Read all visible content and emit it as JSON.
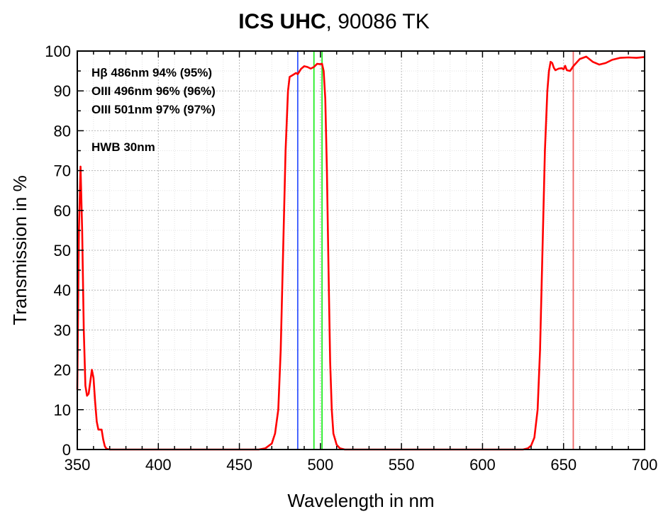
{
  "chart_data": {
    "type": "line",
    "title": "ICS UHC",
    "subtitle": ", 90086 TK",
    "xlabel": "Wavelength in nm",
    "ylabel": "Transmission in %",
    "xlim": [
      350,
      700
    ],
    "ylim": [
      0,
      100
    ],
    "x_ticks": [
      350,
      400,
      450,
      500,
      550,
      600,
      650,
      700
    ],
    "y_ticks": [
      0,
      10,
      20,
      30,
      40,
      50,
      60,
      70,
      80,
      90,
      100
    ],
    "grid": true,
    "series": [
      {
        "color": "#ff0000",
        "points": [
          [
            350,
            15
          ],
          [
            351,
            55
          ],
          [
            352,
            71
          ],
          [
            353,
            55
          ],
          [
            354,
            30
          ],
          [
            355,
            16
          ],
          [
            356,
            13.5
          ],
          [
            357,
            14
          ],
          [
            358,
            17
          ],
          [
            359,
            20
          ],
          [
            360,
            18
          ],
          [
            361,
            12
          ],
          [
            362,
            7
          ],
          [
            363,
            5
          ],
          [
            364,
            5
          ],
          [
            365,
            5
          ],
          [
            366,
            2.5
          ],
          [
            367,
            0.8
          ],
          [
            368,
            0.2
          ],
          [
            370,
            0
          ],
          [
            400,
            0
          ],
          [
            450,
            0
          ],
          [
            462,
            0
          ],
          [
            466,
            0.3
          ],
          [
            470,
            1.5
          ],
          [
            472,
            4
          ],
          [
            474,
            10
          ],
          [
            475.5,
            25
          ],
          [
            477,
            50
          ],
          [
            478.5,
            75
          ],
          [
            480,
            90
          ],
          [
            481,
            93.5
          ],
          [
            483,
            94
          ],
          [
            485,
            94.5
          ],
          [
            486,
            94.2
          ],
          [
            488,
            95.5
          ],
          [
            490,
            96.2
          ],
          [
            492,
            96
          ],
          [
            494,
            95.6
          ],
          [
            496,
            96
          ],
          [
            498,
            96.8
          ],
          [
            500,
            96.7
          ],
          [
            501,
            96.8
          ],
          [
            502,
            95
          ],
          [
            503,
            88
          ],
          [
            504,
            70
          ],
          [
            505,
            45
          ],
          [
            506,
            22
          ],
          [
            507,
            10
          ],
          [
            508,
            4
          ],
          [
            510,
            1.2
          ],
          [
            512,
            0.3
          ],
          [
            515,
            0
          ],
          [
            560,
            0
          ],
          [
            600,
            0
          ],
          [
            625,
            0
          ],
          [
            628,
            0.3
          ],
          [
            630,
            1
          ],
          [
            632,
            3
          ],
          [
            634,
            10
          ],
          [
            635.5,
            25
          ],
          [
            637,
            50
          ],
          [
            638.5,
            75
          ],
          [
            640,
            90
          ],
          [
            641,
            95
          ],
          [
            642,
            97.3
          ],
          [
            643,
            97
          ],
          [
            644,
            95.8
          ],
          [
            645,
            95.2
          ],
          [
            647,
            95.6
          ],
          [
            649,
            95.7
          ],
          [
            650,
            95.4
          ],
          [
            651,
            96.3
          ],
          [
            652,
            95.2
          ],
          [
            654,
            95
          ],
          [
            656,
            96.2
          ],
          [
            660,
            98
          ],
          [
            664,
            98.6
          ],
          [
            668,
            97.3
          ],
          [
            672,
            96.6
          ],
          [
            676,
            97
          ],
          [
            680,
            97.8
          ],
          [
            685,
            98.3
          ],
          [
            690,
            98.4
          ],
          [
            695,
            98.3
          ],
          [
            700,
            98.5
          ]
        ]
      }
    ],
    "marker_lines": [
      {
        "x": 486,
        "color": "#3355ff"
      },
      {
        "x": 496,
        "color": "#22ee22"
      },
      {
        "x": 501,
        "color": "#22ee22"
      },
      {
        "x": 656,
        "color": "#ee6666"
      }
    ],
    "annotations": [
      {
        "line": "Hβ  486nm  94%  (95%)"
      },
      {
        "line": "OIII  496nm  96%  (96%)"
      },
      {
        "line": "OIII  501nm  97%  (97%)"
      },
      {
        "line": "HWB  30nm"
      }
    ]
  }
}
